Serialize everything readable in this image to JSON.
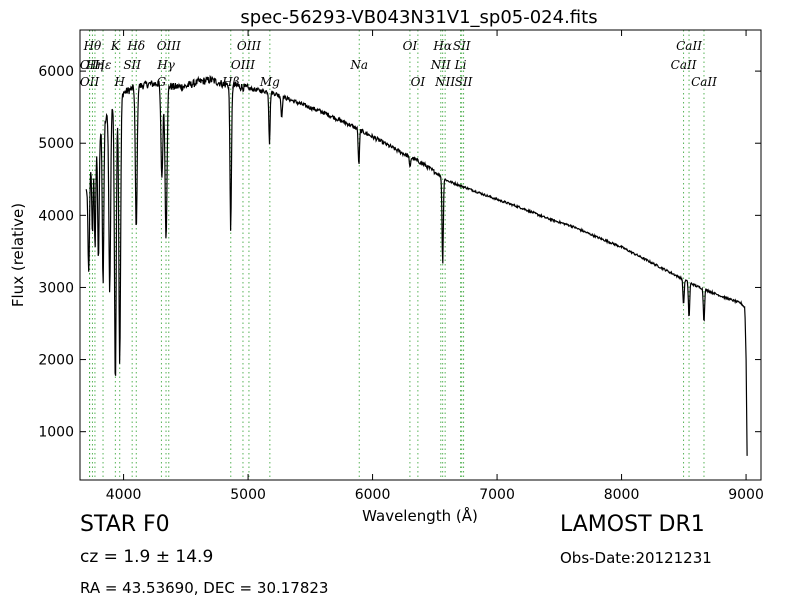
{
  "chart_data": {
    "type": "line",
    "title": "spec-56293-VB043N31V1_sp05-024.fits",
    "xlabel": "Wavelength (Å)",
    "ylabel": "Flux (relative)",
    "xlim": [
      3650,
      9120
    ],
    "ylim": [
      330,
      6570
    ],
    "xticks": [
      4000,
      5000,
      6000,
      7000,
      8000,
      9000
    ],
    "yticks": [
      1000,
      2000,
      3000,
      4000,
      5000,
      6000
    ],
    "grid": false,
    "line_color": "#000000",
    "marker_color": "#2ca02c",
    "continuum": [
      [
        3700,
        4350
      ],
      [
        3800,
        5100
      ],
      [
        3900,
        5500
      ],
      [
        4000,
        5700
      ],
      [
        4100,
        5780
      ],
      [
        4200,
        5820
      ],
      [
        4300,
        5830
      ],
      [
        4400,
        5780
      ],
      [
        4500,
        5790
      ],
      [
        4600,
        5850
      ],
      [
        4700,
        5880
      ],
      [
        4800,
        5820
      ],
      [
        4900,
        5800
      ],
      [
        5000,
        5760
      ],
      [
        5200,
        5700
      ],
      [
        5400,
        5560
      ],
      [
        5600,
        5430
      ],
      [
        5800,
        5270
      ],
      [
        6000,
        5090
      ],
      [
        6200,
        4900
      ],
      [
        6400,
        4720
      ],
      [
        6600,
        4480
      ],
      [
        6800,
        4350
      ],
      [
        7000,
        4220
      ],
      [
        7200,
        4100
      ],
      [
        7400,
        3960
      ],
      [
        7600,
        3850
      ],
      [
        7800,
        3700
      ],
      [
        8000,
        3560
      ],
      [
        8200,
        3380
      ],
      [
        8400,
        3200
      ],
      [
        8600,
        3020
      ],
      [
        8800,
        2880
      ],
      [
        8960,
        2780
      ],
      [
        8990,
        2720
      ],
      [
        9000,
        2000
      ],
      [
        9010,
        330
      ]
    ],
    "absorption": [
      [
        3720,
        1300,
        6
      ],
      [
        3750,
        1000,
        5
      ],
      [
        3771,
        1400,
        5
      ],
      [
        3798,
        1700,
        6
      ],
      [
        3835,
        2200,
        6
      ],
      [
        3889,
        2500,
        7
      ],
      [
        3934,
        3900,
        7
      ],
      [
        3969,
        3700,
        7
      ],
      [
        4102,
        2000,
        7
      ],
      [
        4308,
        1300,
        8
      ],
      [
        4341,
        2100,
        8
      ],
      [
        4861,
        2000,
        6
      ],
      [
        5172,
        700,
        5
      ],
      [
        5270,
        300,
        5
      ],
      [
        5890,
        500,
        5
      ],
      [
        6300,
        150,
        5
      ],
      [
        6563,
        1200,
        5
      ],
      [
        8498,
        350,
        5
      ],
      [
        8542,
        500,
        5
      ],
      [
        8662,
        450,
        5
      ]
    ],
    "line_markers": [
      {
        "wavelength": 3727,
        "label": "OII",
        "row": 2
      },
      {
        "wavelength": 3727,
        "label": "OII",
        "row": 3
      },
      {
        "wavelength": 3750,
        "label": "Hθ",
        "row": 1
      },
      {
        "wavelength": 3770,
        "label": "Hη",
        "row": 2
      },
      {
        "wavelength": 3835,
        "label": "Hε",
        "row": 2
      },
      {
        "wavelength": 3934,
        "label": "K",
        "row": 1
      },
      {
        "wavelength": 3969,
        "label": "H",
        "row": 3
      },
      {
        "wavelength": 4069,
        "label": "SII",
        "row": 2
      },
      {
        "wavelength": 4102,
        "label": "Hδ",
        "row": 1
      },
      {
        "wavelength": 4304,
        "label": "G",
        "row": 3
      },
      {
        "wavelength": 4341,
        "label": "Hγ",
        "row": 2
      },
      {
        "wavelength": 4363,
        "label": "OIII",
        "row": 1
      },
      {
        "wavelength": 4861,
        "label": "Hβ",
        "row": 3
      },
      {
        "wavelength": 4959,
        "label": "OIII",
        "row": 2
      },
      {
        "wavelength": 5007,
        "label": "OIII",
        "row": 1
      },
      {
        "wavelength": 5175,
        "label": "Mg",
        "row": 3
      },
      {
        "wavelength": 5893,
        "label": "Na",
        "row": 2
      },
      {
        "wavelength": 6300,
        "label": "OI",
        "row": 1
      },
      {
        "wavelength": 6364,
        "label": "OI",
        "row": 3
      },
      {
        "wavelength": 6548,
        "label": "NII",
        "row": 2
      },
      {
        "wavelength": 6563,
        "label": "Hα",
        "row": 1
      },
      {
        "wavelength": 6583,
        "label": "NII",
        "row": 3
      },
      {
        "wavelength": 6707,
        "label": "Li",
        "row": 2
      },
      {
        "wavelength": 6716,
        "label": "SII",
        "row": 1
      },
      {
        "wavelength": 6731,
        "label": "SII",
        "row": 3
      },
      {
        "wavelength": 8498,
        "label": "CaII",
        "row": 2
      },
      {
        "wavelength": 8542,
        "label": "CaII",
        "row": 1
      },
      {
        "wavelength": 8662,
        "label": "CaII",
        "row": 3
      }
    ]
  },
  "info": {
    "class_label": "STAR   F0",
    "cz_label": "cz = 1.9 ± 14.9",
    "radec_label": "RA = 43.53690, DEC = 30.17823",
    "survey_label": "LAMOST DR1",
    "obsdate_label": "Obs-Date:20121231"
  }
}
